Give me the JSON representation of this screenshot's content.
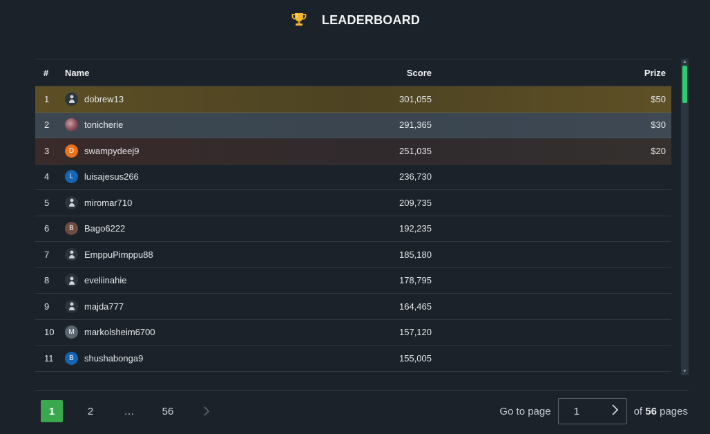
{
  "header": {
    "title": "LEADERBOARD",
    "icon": "trophy-icon"
  },
  "table": {
    "columns": {
      "rank": "#",
      "name": "Name",
      "score": "Score",
      "prize": "Prize"
    },
    "rows": [
      {
        "rank": "1",
        "name": "dobrew13",
        "score": "301,055",
        "prize": "$50",
        "avatar": "default",
        "initial": ""
      },
      {
        "rank": "2",
        "name": "tonicherie",
        "score": "291,365",
        "prize": "$30",
        "avatar": "photo",
        "initial": ""
      },
      {
        "rank": "3",
        "name": "swampydeej9",
        "score": "251,035",
        "prize": "$20",
        "avatar": "letter",
        "initial": "D",
        "color": "#e8731e"
      },
      {
        "rank": "4",
        "name": "luisajesus266",
        "score": "236,730",
        "prize": "",
        "avatar": "letter",
        "initial": "L",
        "color": "#1565b5"
      },
      {
        "rank": "5",
        "name": "miromar710",
        "score": "209,735",
        "prize": "",
        "avatar": "default",
        "initial": ""
      },
      {
        "rank": "6",
        "name": "Bago6222",
        "score": "192,235",
        "prize": "",
        "avatar": "letter",
        "initial": "B",
        "color": "#6d4c41"
      },
      {
        "rank": "7",
        "name": "EmppuPimppu88",
        "score": "185,180",
        "prize": "",
        "avatar": "default",
        "initial": ""
      },
      {
        "rank": "8",
        "name": "eveliinahie",
        "score": "178,795",
        "prize": "",
        "avatar": "default",
        "initial": ""
      },
      {
        "rank": "9",
        "name": "majda777",
        "score": "164,465",
        "prize": "",
        "avatar": "default",
        "initial": ""
      },
      {
        "rank": "10",
        "name": "markolsheim6700",
        "score": "157,120",
        "prize": "",
        "avatar": "letter",
        "initial": "M",
        "color": "#5b6770"
      },
      {
        "rank": "11",
        "name": "shushabonga9",
        "score": "155,005",
        "prize": "",
        "avatar": "letter",
        "initial": "B",
        "color": "#1565b5"
      }
    ]
  },
  "pagination": {
    "pages": [
      "1",
      "2",
      "…",
      "56"
    ],
    "active_page": "1",
    "goto_label": "Go to page",
    "goto_value": "1",
    "of_label": "of",
    "total_pages": "56",
    "pages_label": "pages"
  },
  "colors": {
    "accent": "#3aa84f",
    "gold": "#5c4f25",
    "silver": "#3b4651",
    "bronze": "#3a2a2a",
    "background": "#1b2229"
  }
}
